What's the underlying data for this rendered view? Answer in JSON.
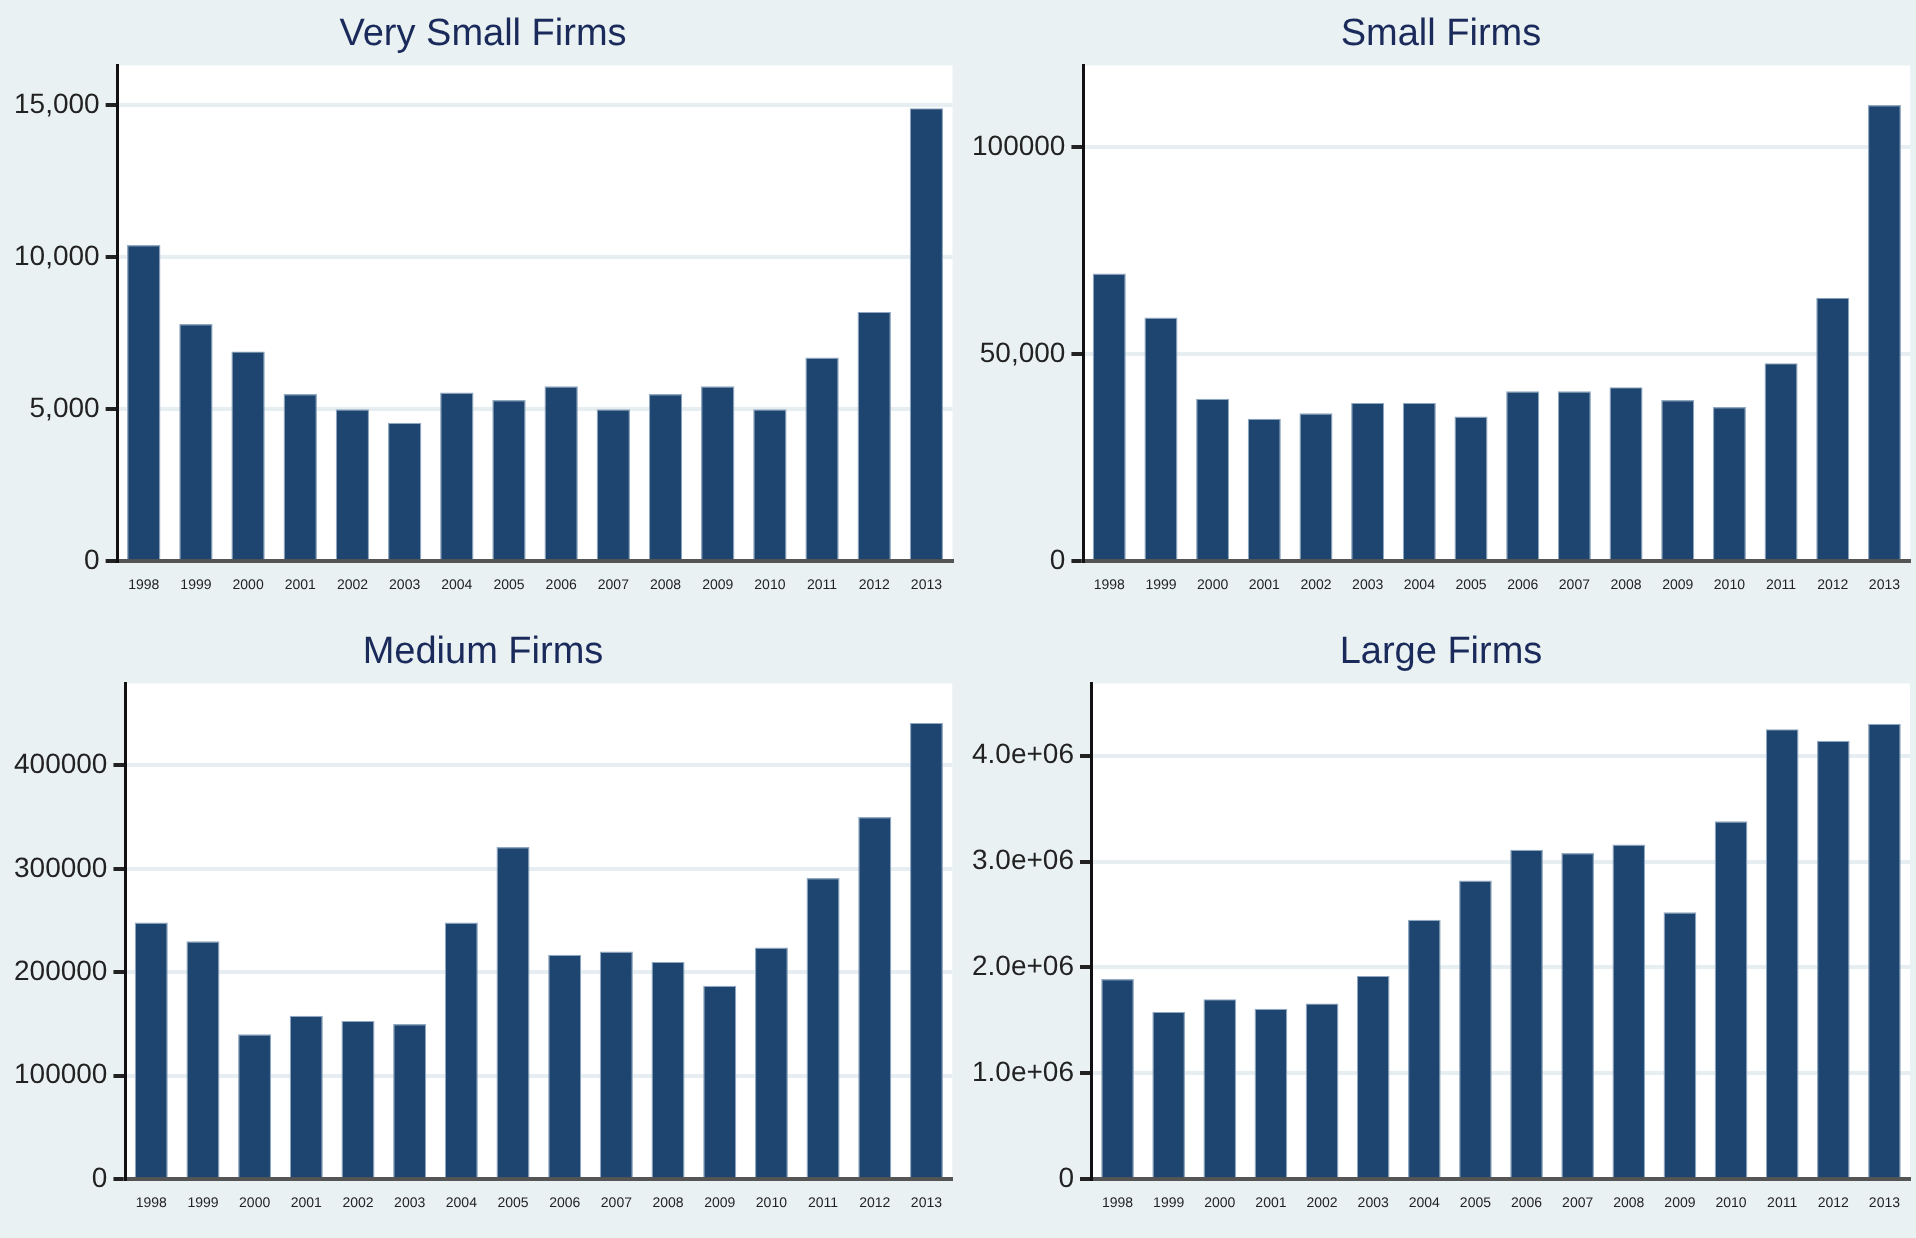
{
  "chart_data": [
    {
      "type": "bar",
      "title": "Very Small Firms",
      "categories": [
        "1998",
        "1999",
        "2000",
        "2001",
        "2002",
        "2003",
        "2004",
        "2005",
        "2006",
        "2007",
        "2008",
        "2009",
        "2010",
        "2011",
        "2012",
        "2013"
      ],
      "values": [
        10400,
        7800,
        6900,
        5500,
        5000,
        4550,
        5550,
        5300,
        5750,
        5000,
        5500,
        5750,
        5000,
        6700,
        8200,
        14900
      ],
      "color": "#1d4570",
      "ylim": [
        0,
        16300
      ],
      "yticks": [
        0,
        {
          "value": 5000,
          "label": "5,000"
        },
        {
          "value": 10000,
          "label": "10,000"
        },
        {
          "value": 15000,
          "label": "15,000"
        }
      ],
      "grid": "y"
    },
    {
      "type": "bar",
      "title": "Small Firms",
      "categories": [
        "1998",
        "1999",
        "2000",
        "2001",
        "2002",
        "2003",
        "2004",
        "2005",
        "2006",
        "2007",
        "2008",
        "2009",
        "2010",
        "2011",
        "2012",
        "2013"
      ],
      "values": [
        69400,
        58800,
        39200,
        34400,
        35700,
        38200,
        38200,
        34900,
        41000,
        41000,
        42000,
        38900,
        37200,
        47800,
        63600,
        110100
      ],
      "color": "#1d4570",
      "ylim": [
        0,
        119600
      ],
      "yticks": [
        0,
        {
          "value": 50000,
          "label": "50,000"
        },
        100000
      ],
      "grid": "y"
    },
    {
      "type": "bar",
      "title": "Medium Firms",
      "categories": [
        "1998",
        "1999",
        "2000",
        "2001",
        "2002",
        "2003",
        "2004",
        "2005",
        "2006",
        "2007",
        "2008",
        "2009",
        "2010",
        "2011",
        "2012",
        "2013"
      ],
      "values": [
        248000,
        230000,
        140000,
        158000,
        153000,
        150000,
        248000,
        321000,
        217000,
        220000,
        210000,
        187000,
        224000,
        291000,
        350000,
        441000
      ],
      "color": "#1d4570",
      "ylim": [
        0,
        479000
      ],
      "yticks": [
        0,
        100000,
        200000,
        300000,
        400000
      ],
      "grid": "y"
    },
    {
      "type": "bar",
      "title": "Large Firms",
      "categories": [
        "1998",
        "1999",
        "2000",
        "2001",
        "2002",
        "2003",
        "2004",
        "2005",
        "2006",
        "2007",
        "2008",
        "2009",
        "2010",
        "2011",
        "2012",
        "2013"
      ],
      "values": [
        1890000,
        1580000,
        1700000,
        1610000,
        1660000,
        1920000,
        2450000,
        2820000,
        3110000,
        3080000,
        3160000,
        2520000,
        3380000,
        4250000,
        4140000,
        4300000
      ],
      "color": "#1d4570",
      "ylim": [
        0,
        4680000
      ],
      "yticks": [
        0,
        {
          "value": 1000000,
          "label": "1.0e+06"
        },
        {
          "value": 2000000,
          "label": "2.0e+06"
        },
        {
          "value": 3000000,
          "label": "3.0e+06"
        },
        {
          "value": 4000000,
          "label": "4.0e+06"
        }
      ],
      "grid": "y"
    }
  ]
}
